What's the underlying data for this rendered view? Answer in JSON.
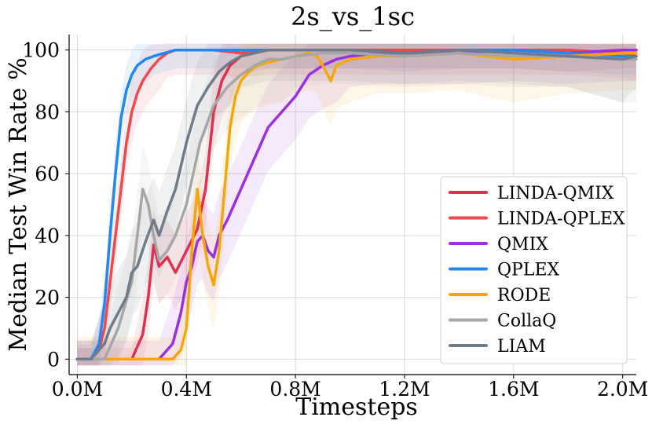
{
  "chart_data": {
    "type": "line",
    "title": "2s_vs_1sc",
    "xlabel": "Timesteps",
    "ylabel": "Median Test Win Rate %",
    "xlim": [
      -0.03,
      2.05
    ],
    "ylim": [
      -5,
      105
    ],
    "xticks": [
      0.0,
      0.4,
      0.8,
      1.2,
      1.6,
      2.0
    ],
    "xtick_labels": [
      "0.0M",
      "0.4M",
      "0.8M",
      "1.2M",
      "1.6M",
      "2.0M"
    ],
    "yticks": [
      0,
      20,
      40,
      60,
      80,
      100
    ],
    "ytick_labels": [
      "0",
      "20",
      "40",
      "60",
      "80",
      "100"
    ],
    "grid": true,
    "legend_position": "lower-right",
    "series": [
      {
        "name": "LINDA-QMIX",
        "color": "#e0304e",
        "x": [
          0.0,
          0.1,
          0.2,
          0.24,
          0.26,
          0.28,
          0.3,
          0.33,
          0.36,
          0.4,
          0.44,
          0.47,
          0.5,
          0.53,
          0.56,
          0.6,
          0.65,
          0.7,
          0.8,
          0.9,
          1.0,
          1.2,
          1.4,
          1.6,
          1.8,
          2.0,
          2.05
        ],
        "y": [
          0,
          0,
          0,
          8,
          20,
          37,
          30,
          33,
          28,
          35,
          42,
          55,
          80,
          90,
          95,
          98,
          99,
          100,
          100,
          100,
          100,
          100,
          100,
          100,
          99,
          100,
          100
        ],
        "band": [
          6,
          12
        ]
      },
      {
        "name": "LINDA-QPLEX",
        "color": "#f0484b",
        "x": [
          0.0,
          0.05,
          0.08,
          0.1,
          0.12,
          0.14,
          0.16,
          0.18,
          0.2,
          0.22,
          0.24,
          0.27,
          0.3,
          0.33,
          0.36,
          0.4,
          0.5,
          0.6,
          0.7,
          0.8,
          1.0,
          1.2,
          1.4,
          1.6,
          1.8,
          2.0,
          2.05
        ],
        "y": [
          0,
          0,
          3,
          10,
          25,
          40,
          55,
          70,
          80,
          86,
          90,
          94,
          97,
          99,
          100,
          100,
          100,
          99,
          100,
          100,
          100,
          100,
          100,
          100,
          100,
          99,
          98
        ],
        "band": [
          8,
          10
        ]
      },
      {
        "name": "QMIX",
        "color": "#9b30e0",
        "x": [
          0.0,
          0.3,
          0.35,
          0.38,
          0.4,
          0.42,
          0.44,
          0.46,
          0.48,
          0.5,
          0.52,
          0.55,
          0.6,
          0.65,
          0.7,
          0.75,
          0.8,
          0.85,
          0.9,
          0.95,
          1.0,
          1.1,
          1.2,
          1.4,
          1.6,
          1.8,
          2.0,
          2.05
        ],
        "y": [
          0,
          0,
          5,
          15,
          25,
          30,
          38,
          40,
          35,
          33,
          40,
          45,
          55,
          65,
          75,
          80,
          85,
          92,
          95,
          97,
          98,
          99,
          99,
          99,
          100,
          99,
          100,
          100
        ],
        "band": [
          10,
          14
        ]
      },
      {
        "name": "QPLEX",
        "color": "#2187f2",
        "x": [
          0.0,
          0.05,
          0.08,
          0.1,
          0.12,
          0.14,
          0.16,
          0.18,
          0.2,
          0.22,
          0.25,
          0.28,
          0.32,
          0.36,
          0.4,
          0.5,
          0.6,
          0.8,
          1.0,
          1.2,
          1.4,
          1.6,
          1.8,
          2.0,
          2.05
        ],
        "y": [
          0,
          0,
          5,
          18,
          40,
          60,
          78,
          87,
          92,
          95,
          97,
          98,
          99,
          100,
          100,
          100,
          100,
          100,
          100,
          99,
          100,
          100,
          99,
          98,
          98
        ],
        "band": [
          6,
          8
        ]
      },
      {
        "name": "RODE",
        "color": "#f5a60a",
        "x": [
          0.0,
          0.35,
          0.38,
          0.4,
          0.42,
          0.44,
          0.46,
          0.48,
          0.5,
          0.52,
          0.54,
          0.56,
          0.58,
          0.6,
          0.63,
          0.66,
          0.7,
          0.75,
          0.8,
          0.85,
          0.88,
          0.9,
          0.93,
          0.95,
          1.0,
          1.1,
          1.2,
          1.4,
          1.6,
          1.8,
          2.0,
          2.05
        ],
        "y": [
          0,
          0,
          3,
          10,
          35,
          55,
          40,
          30,
          24,
          35,
          55,
          75,
          85,
          90,
          93,
          95,
          96,
          97,
          98,
          99,
          98,
          95,
          90,
          95,
          97,
          98,
          98,
          99,
          97,
          98,
          99,
          99
        ],
        "band": [
          12,
          14
        ]
      },
      {
        "name": "CollaQ",
        "color": "#a6a6a6",
        "x": [
          0.0,
          0.1,
          0.15,
          0.2,
          0.22,
          0.24,
          0.26,
          0.28,
          0.3,
          0.33,
          0.36,
          0.4,
          0.45,
          0.5,
          0.55,
          0.6,
          0.65,
          0.7,
          0.75,
          0.8,
          0.9,
          1.0,
          1.2,
          1.4,
          1.6,
          1.8,
          2.0,
          2.05
        ],
        "y": [
          0,
          0,
          10,
          25,
          40,
          55,
          50,
          40,
          32,
          35,
          40,
          50,
          70,
          82,
          88,
          92,
          95,
          97,
          97,
          98,
          99,
          99,
          98,
          99,
          98,
          98,
          97,
          97
        ],
        "band": [
          10,
          14
        ]
      },
      {
        "name": "LIAM",
        "color": "#6f7a8b",
        "x": [
          0.0,
          0.05,
          0.1,
          0.12,
          0.15,
          0.18,
          0.2,
          0.22,
          0.25,
          0.28,
          0.3,
          0.33,
          0.36,
          0.4,
          0.44,
          0.48,
          0.52,
          0.56,
          0.6,
          0.65,
          0.7,
          0.8,
          1.0,
          1.2,
          1.4,
          1.6,
          1.8,
          2.0,
          2.05
        ],
        "y": [
          0,
          0,
          5,
          10,
          15,
          20,
          28,
          30,
          38,
          45,
          40,
          48,
          55,
          70,
          82,
          88,
          93,
          96,
          98,
          99,
          100,
          100,
          100,
          99,
          100,
          99,
          98,
          97,
          98
        ],
        "band": [
          10,
          14
        ]
      }
    ]
  }
}
